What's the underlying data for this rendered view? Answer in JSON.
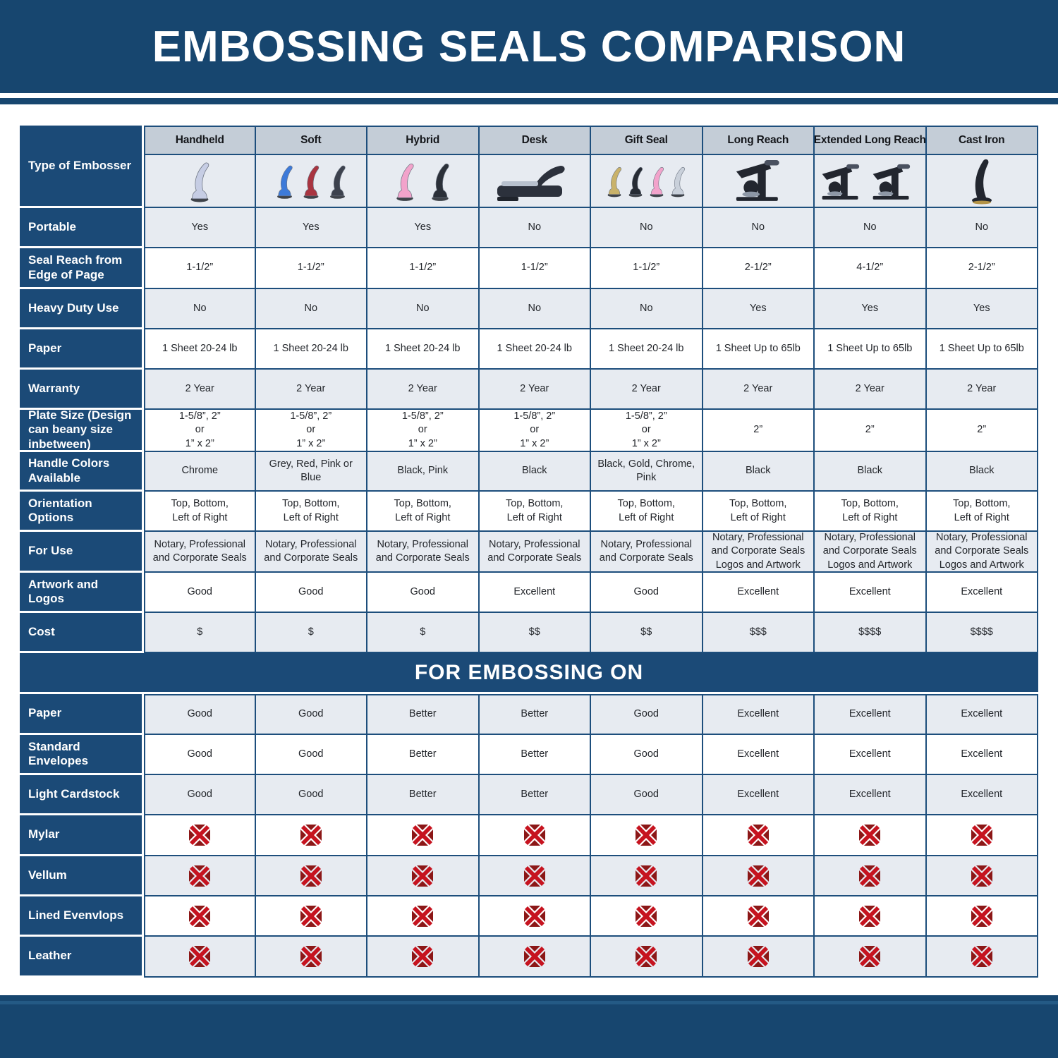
{
  "chart_data": {
    "type": "table",
    "title": "EMBOSSING SEALS COMPARISON",
    "section2_title": "FOR EMBOSSING ON",
    "corner_label": "Type of Embosser",
    "colors": {
      "navy": "#1b4a77",
      "banner_navy": "#17466f",
      "header_cell_bg": "#c4cdd7",
      "light_cell_bg": "#e7ebf1",
      "white_cell_bg": "#ffffff",
      "grid_border": "#1d4e7c",
      "x_red": "#c6131f",
      "x_dark_red": "#8c1717"
    },
    "columns": [
      {
        "label": "Handheld",
        "icon": "handheld-embosser-image",
        "image_type": "lever",
        "handle_colors": [
          "#c6cde4"
        ]
      },
      {
        "label": "Soft",
        "icon": "soft-embosser-image",
        "image_type": "lever",
        "handle_colors": [
          "#3d7ad9",
          "#a93440",
          "#3d424e"
        ]
      },
      {
        "label": "Hybrid",
        "icon": "hybrid-embosser-image",
        "image_type": "lever",
        "handle_colors": [
          "#f2a3cb",
          "#2b3039"
        ]
      },
      {
        "label": "Desk",
        "icon": "desk-embosser-image",
        "image_type": "desk",
        "handle_colors": [
          "#2c313c"
        ]
      },
      {
        "label": "Gift Seal",
        "icon": "gift-seal-embosser-image",
        "image_type": "lever",
        "handle_colors": [
          "#c9b26a",
          "#262b34",
          "#f2a3cb",
          "#c9d0da"
        ]
      },
      {
        "label": "Long Reach",
        "icon": "long-reach-embosser-image",
        "image_type": "press",
        "handle_colors": [
          "#22262f"
        ]
      },
      {
        "label": "Extended Long Reach",
        "icon": "extended-long-reach-embosser-image",
        "image_type": "press-double",
        "handle_colors": [
          "#22262f",
          "#22262f"
        ]
      },
      {
        "label": "Cast Iron",
        "icon": "cast-iron-embosser-image",
        "image_type": "cast-iron",
        "handle_colors": [
          "#22262f"
        ]
      }
    ],
    "spec_rows": [
      {
        "label": "Portable",
        "values": [
          "Yes",
          "Yes",
          "Yes",
          "No",
          "No",
          "No",
          "No",
          "No"
        ]
      },
      {
        "label": "Seal Reach from Edge of Page",
        "values": [
          "1-1/2”",
          "1-1/2”",
          "1-1/2”",
          "1-1/2”",
          "1-1/2”",
          "2-1/2”",
          "4-1/2”",
          "2-1/2”"
        ]
      },
      {
        "label": "Heavy Duty Use",
        "values": [
          "No",
          "No",
          "No",
          "No",
          "No",
          "Yes",
          "Yes",
          "Yes"
        ]
      },
      {
        "label": "Paper",
        "values": [
          "1 Sheet 20-24 lb",
          "1 Sheet 20-24 lb",
          "1 Sheet 20-24 lb",
          "1 Sheet 20-24 lb",
          "1 Sheet 20-24 lb",
          "1 Sheet Up to 65lb",
          "1 Sheet Up to 65lb",
          "1 Sheet Up to 65lb"
        ]
      },
      {
        "label": "Warranty",
        "values": [
          "2 Year",
          "2 Year",
          "2 Year",
          "2 Year",
          "2 Year",
          "2 Year",
          "2 Year",
          "2 Year"
        ]
      },
      {
        "label": "Plate Size (Design can beany size inbetween)",
        "values": [
          "1-5/8”, 2”\nor\n1” x 2”",
          "1-5/8”, 2”\nor\n1” x 2”",
          "1-5/8”, 2”\nor\n1” x 2”",
          "1-5/8”, 2”\nor\n1” x 2”",
          "1-5/8”, 2”\nor\n1” x 2”",
          "2”",
          "2”",
          "2”"
        ]
      },
      {
        "label": "Handle Colors Available",
        "values": [
          "Chrome",
          "Grey, Red, Pink or Blue",
          "Black, Pink",
          "Black",
          "Black, Gold, Chrome, Pink",
          "Black",
          "Black",
          "Black"
        ]
      },
      {
        "label": "Orientation Options",
        "values": [
          "Top, Bottom,\nLeft of Right",
          "Top, Bottom,\nLeft of Right",
          "Top, Bottom,\nLeft of Right",
          "Top, Bottom,\nLeft of Right",
          "Top, Bottom,\nLeft of Right",
          "Top, Bottom,\nLeft of Right",
          "Top, Bottom,\nLeft of Right",
          "Top, Bottom,\nLeft of Right"
        ]
      },
      {
        "label": "For Use",
        "values": [
          "Notary, Professional\nand Corporate Seals",
          "Notary, Professional\nand Corporate Seals",
          "Notary, Professional\nand Corporate Seals",
          "Notary, Professional\nand Corporate Seals",
          "Notary, Professional\nand Corporate Seals",
          "Notary, Professional\nand Corporate Seals\nLogos and Artwork",
          "Notary, Professional\nand Corporate Seals\nLogos and Artwork",
          "Notary, Professional\nand Corporate Seals\nLogos and Artwork"
        ]
      },
      {
        "label": "Artwork and Logos",
        "values": [
          "Good",
          "Good",
          "Good",
          "Excellent",
          "Good",
          "Excellent",
          "Excellent",
          "Excellent"
        ]
      },
      {
        "label": "Cost",
        "values": [
          "$",
          "$",
          "$",
          "$$",
          "$$",
          "$$$",
          "$$$$",
          "$$$$"
        ]
      }
    ],
    "embossing_rows": [
      {
        "label": "Paper",
        "values": [
          "Good",
          "Good",
          "Better",
          "Better",
          "Good",
          "Excellent",
          "Excellent",
          "Excellent"
        ]
      },
      {
        "label": "Standard Envelopes",
        "values": [
          "Good",
          "Good",
          "Better",
          "Better",
          "Good",
          "Excellent",
          "Excellent",
          "Excellent"
        ]
      },
      {
        "label": "Light Cardstock",
        "values": [
          "Good",
          "Good",
          "Better",
          "Better",
          "Good",
          "Excellent",
          "Excellent",
          "Excellent"
        ]
      },
      {
        "label": "Mylar",
        "value_type": "x-icon",
        "x_icon": "not-suitable-x-icon"
      },
      {
        "label": "Vellum",
        "value_type": "x-icon",
        "x_icon": "not-suitable-x-icon"
      },
      {
        "label": "Lined Evenvlops",
        "value_type": "x-icon",
        "x_icon": "not-suitable-x-icon"
      },
      {
        "label": "Leather",
        "value_type": "x-icon",
        "x_icon": "not-suitable-x-icon"
      }
    ]
  }
}
